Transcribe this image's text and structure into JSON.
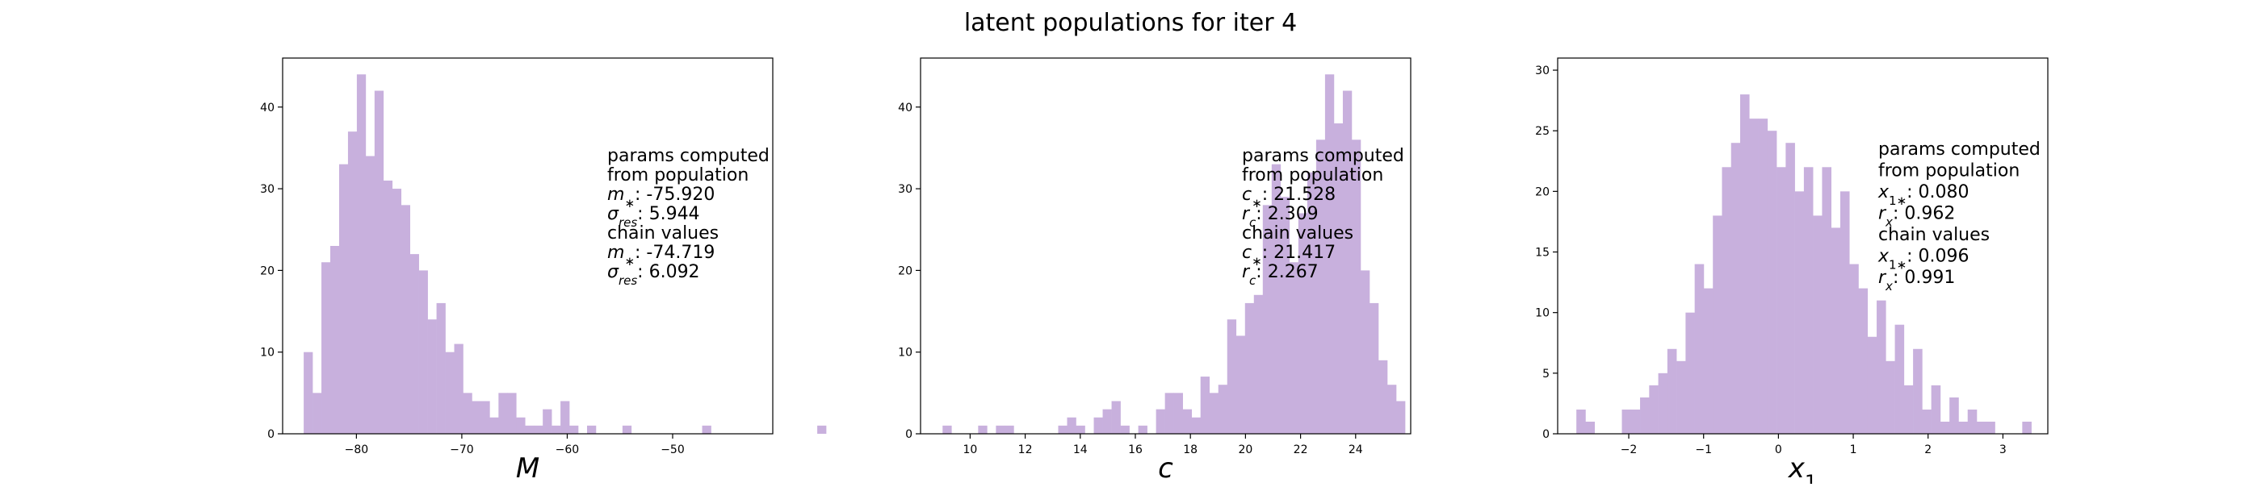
{
  "figure": {
    "title": "latent populations for iter 4"
  },
  "colors": {
    "bar": "#c8b0dd",
    "axis": "#000000",
    "background": "#ffffff"
  },
  "chart_data": [
    {
      "type": "bar",
      "xlabel": "M",
      "xlim": [
        -87,
        -40.5
      ],
      "ylim": [
        0,
        46
      ],
      "xticks": [
        -80,
        -70,
        -60,
        -50
      ],
      "xtick_labels": [
        "−80",
        "−70",
        "−60",
        "−50"
      ],
      "yticks": [
        0,
        10,
        20,
        30,
        40
      ],
      "bin_start": -85.0,
      "bin_width": 0.84,
      "values": [
        10,
        5,
        21,
        23,
        33,
        37,
        44,
        34,
        42,
        31,
        30,
        28,
        22,
        20,
        14,
        16,
        10,
        11,
        5,
        4,
        4,
        2,
        5,
        5,
        2,
        1,
        1,
        3,
        1,
        4,
        1,
        0,
        1,
        0,
        0,
        0,
        1,
        0,
        0,
        0,
        0,
        0,
        0,
        0,
        0,
        1,
        0,
        0,
        0,
        0,
        0,
        0,
        0,
        0,
        0,
        0,
        0,
        0,
        1
      ],
      "annotation": [
        "params computed",
        " from population",
        "$m_*$:  -75.920",
        "$\\sigma_{res}$:    5.944",
        "chain values",
        "$m_*$:  -74.719",
        "$\\sigma_{res}$:    6.092"
      ]
    },
    {
      "type": "bar",
      "xlabel": "c",
      "xlim": [
        8.2,
        26.0
      ],
      "ylim": [
        0,
        46
      ],
      "xticks": [
        10,
        12,
        14,
        16,
        18,
        20,
        22,
        24
      ],
      "xtick_labels": [
        "10",
        "12",
        "14",
        "16",
        "18",
        "20",
        "22",
        "24"
      ],
      "yticks": [
        0,
        10,
        20,
        30,
        40
      ],
      "bin_start": 9.0,
      "bin_width": 0.323,
      "values": [
        1,
        0,
        0,
        0,
        1,
        0,
        1,
        1,
        0,
        0,
        0,
        0,
        0,
        1,
        2,
        1,
        0,
        2,
        3,
        4,
        1,
        0,
        1,
        0,
        3,
        5,
        5,
        3,
        2,
        7,
        5,
        6,
        14,
        12,
        16,
        17,
        28,
        33,
        29,
        21,
        27,
        32,
        36,
        44,
        38,
        42,
        36,
        20,
        16,
        9,
        6,
        4
      ],
      "annotation": [
        "params computed",
        " from population",
        "$c_*$:   21.528",
        "$r_c$:    2.309",
        "chain values",
        "$c_*$:   21.417",
        "$r_c$:    2.267"
      ]
    },
    {
      "type": "bar",
      "xlabel": "x_1",
      "xlim": [
        -2.95,
        3.6
      ],
      "ylim": [
        0,
        31
      ],
      "xticks": [
        -2,
        -1,
        0,
        1,
        2,
        3
      ],
      "xtick_labels": [
        "−2",
        "−1",
        "0",
        "1",
        "2",
        "3"
      ],
      "yticks": [
        0,
        5,
        10,
        15,
        20,
        25,
        30
      ],
      "bin_start": -2.7,
      "bin_width": 0.1216,
      "values": [
        2,
        1,
        0,
        0,
        0,
        2,
        2,
        3,
        4,
        5,
        7,
        6,
        10,
        14,
        12,
        18,
        22,
        24,
        28,
        26,
        26,
        25,
        22,
        24,
        20,
        22,
        18,
        22,
        17,
        20,
        14,
        12,
        8,
        11,
        6,
        9,
        4,
        7,
        2,
        4,
        1,
        3,
        1,
        2,
        1,
        1,
        0,
        0,
        0,
        1
      ],
      "annotation": [
        "params computed",
        " from population",
        "$x_{1*}$:    0.080",
        "$r_x$:    0.962",
        "chain values",
        "$x_{1*}$:    0.096",
        "$r_x$:    0.991"
      ]
    }
  ]
}
